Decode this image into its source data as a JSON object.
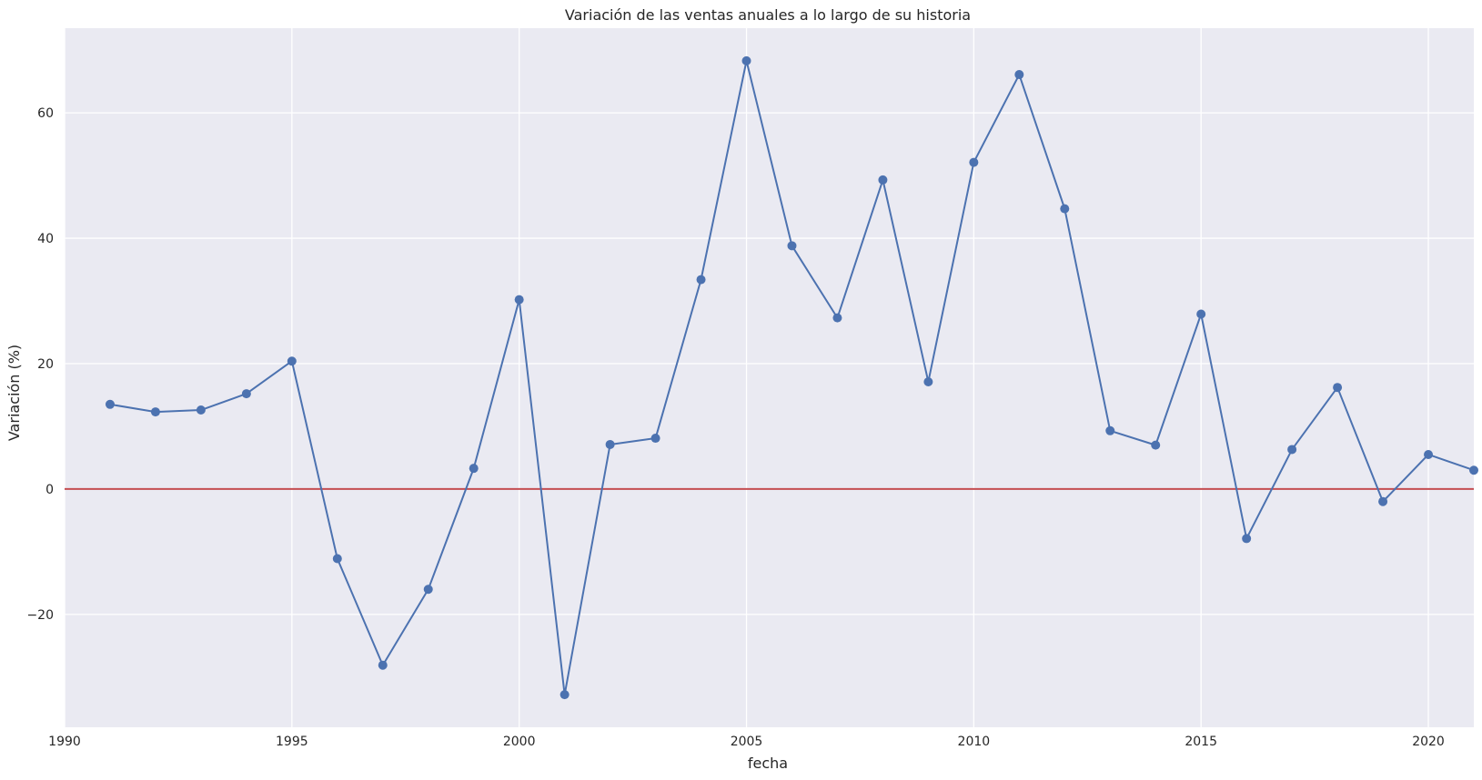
{
  "chart_data": {
    "type": "line",
    "title": "Variación de las ventas anuales a lo largo de su historia",
    "xlabel": "fecha",
    "ylabel": "Variación (%)",
    "xlim": [
      1990,
      2021
    ],
    "ylim": [
      -38,
      73.5
    ],
    "grid": true,
    "legend": "none",
    "x_ticks": [
      1990,
      1995,
      2000,
      2005,
      2010,
      2015,
      2020
    ],
    "y_ticks": [
      -20,
      0,
      20,
      40,
      60
    ],
    "y_tick_labels": [
      "−20",
      "0",
      "20",
      "40",
      "60"
    ],
    "series": [
      {
        "x": [
          1991,
          1992,
          1993,
          1994,
          1995,
          1996,
          1997,
          1998,
          1999,
          2000,
          2001,
          2002,
          2003,
          2004,
          2005,
          2006,
          2007,
          2008,
          2009,
          2010,
          2011,
          2012,
          2013,
          2014,
          2015,
          2016,
          2017,
          2018,
          2019,
          2020,
          2021
        ],
        "values": [
          13.5,
          12.3,
          12.6,
          15.2,
          20.4,
          -11.1,
          -28.1,
          -16.0,
          3.3,
          30.2,
          -32.8,
          7.1,
          8.1,
          33.4,
          68.3,
          38.8,
          27.3,
          49.3,
          17.1,
          52.1,
          66.1,
          44.7,
          9.3,
          7.0,
          27.9,
          -7.9,
          6.3,
          16.2,
          -2.0,
          5.5,
          3.0
        ],
        "color": "#4c72b0",
        "marker": "circle"
      }
    ],
    "reference_lines": [
      {
        "y": 0,
        "color": "#c44e52"
      }
    ],
    "colors": {
      "plot_background": "#eaeaf2",
      "grid": "#ffffff",
      "text": "#262626"
    }
  }
}
